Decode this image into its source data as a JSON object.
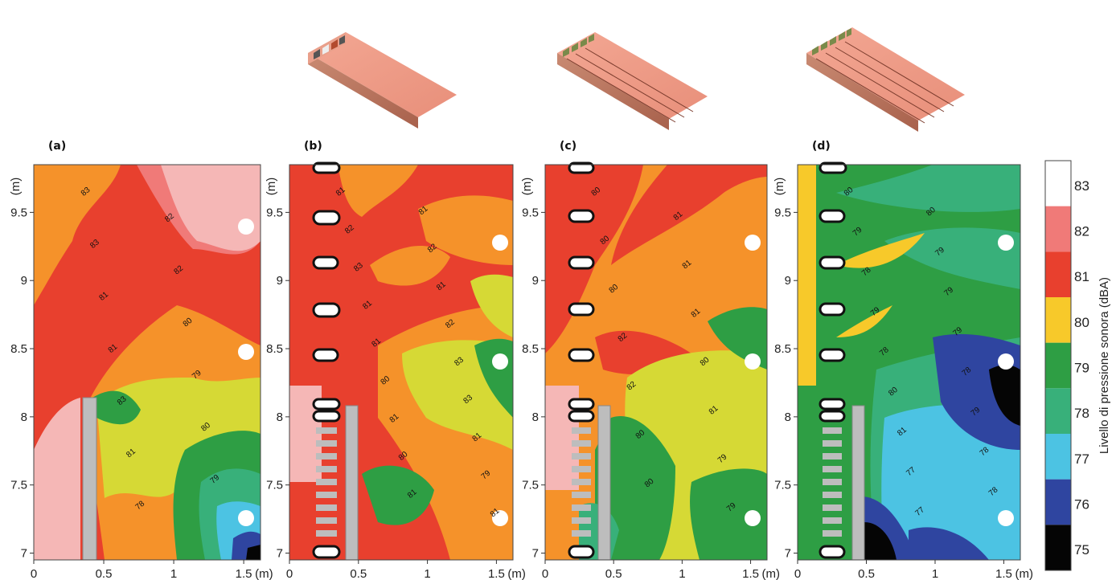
{
  "chart_data": {
    "type": "heatmap",
    "x_axis": {
      "range": [
        0,
        1.5
      ],
      "ticks": [
        "0",
        "0.5",
        "1",
        "1.5"
      ],
      "unit": "(m)"
    },
    "y_axis": {
      "range": [
        7,
        9.5
      ],
      "ticks": [
        "7",
        "7.5",
        "8",
        "8.5",
        "9",
        "9.5"
      ],
      "unit": "(m)"
    },
    "colorbar": {
      "title": "Livello di pressione sonora (dBA)",
      "ticks": [
        "83",
        "82",
        "81",
        "80",
        "79",
        "78",
        "77",
        "76",
        "75"
      ],
      "bands": [
        {
          "level": 83,
          "color": "#ffffff"
        },
        {
          "level": 82,
          "color": "#f07a78"
        },
        {
          "level": 81,
          "color": "#e8402e"
        },
        {
          "level": 80,
          "color": "#f7c92a"
        },
        {
          "level": 79,
          "color": "#2e9e44"
        },
        {
          "level": 78,
          "color": "#38b07a"
        },
        {
          "level": 77,
          "color": "#4cc3e3"
        },
        {
          "level": 76,
          "color": "#2f45a0"
        },
        {
          "level": 75,
          "color": "#050505"
        }
      ]
    },
    "panels": [
      {
        "label": "(a)",
        "has_beam": false,
        "has_diffusers": false,
        "contour_labels": [
          "83",
          "82",
          "83",
          "82",
          "81",
          "80",
          "81",
          "79",
          "83",
          "80",
          "81",
          "79",
          "78"
        ]
      },
      {
        "label": "(b)",
        "has_beam": true,
        "has_diffusers": true,
        "contour_labels": [
          "81",
          "81",
          "82",
          "82",
          "83",
          "81",
          "81",
          "82",
          "81",
          "83",
          "80",
          "83",
          "81",
          "81",
          "80",
          "79",
          "81",
          "81"
        ]
      },
      {
        "label": "(c)",
        "has_beam": true,
        "has_diffusers": true,
        "contour_labels": [
          "80",
          "81",
          "80",
          "81",
          "80",
          "81",
          "82",
          "80",
          "82",
          "81",
          "80",
          "79",
          "80",
          "79"
        ]
      },
      {
        "label": "(d)",
        "has_beam": true,
        "has_diffusers": true,
        "contour_labels": [
          "80",
          "80",
          "79",
          "79",
          "78",
          "79",
          "79",
          "79",
          "78",
          "78",
          "80",
          "79",
          "81",
          "78",
          "77",
          "78",
          "77"
        ]
      }
    ]
  }
}
